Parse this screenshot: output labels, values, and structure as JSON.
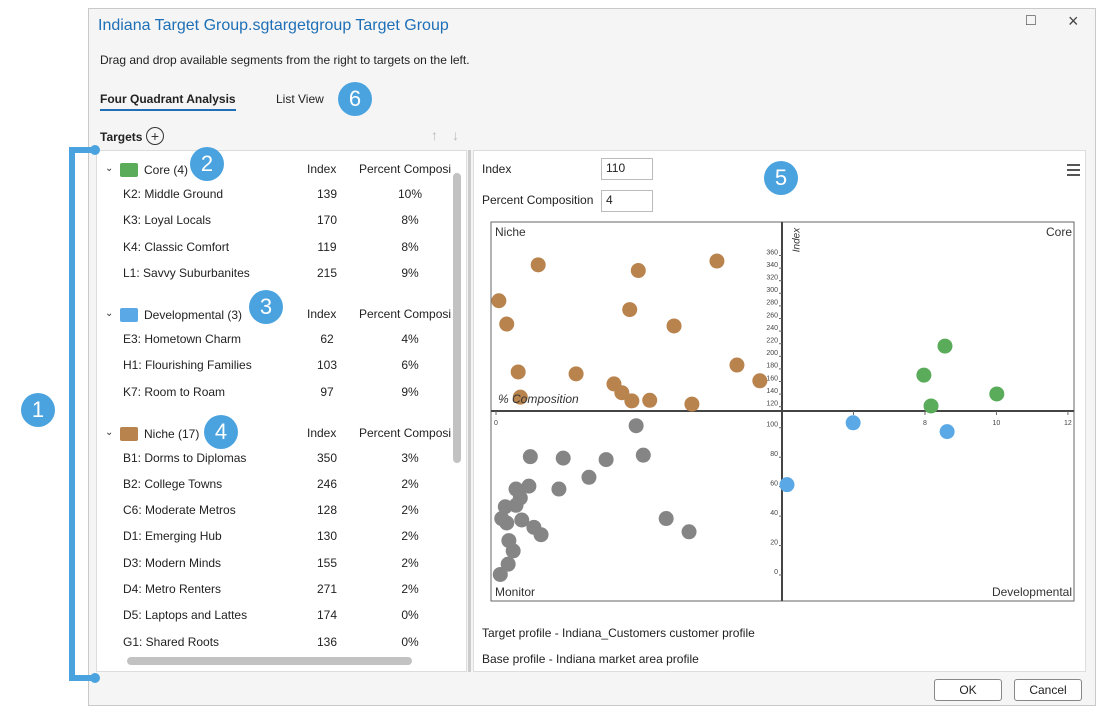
{
  "window": {
    "title": "Indiana Target Group.sgtargetgroup Target Group",
    "instruction": "Drag and drop available segments from the right to targets on the left.",
    "tabs": [
      "Four Quadrant Analysis",
      "List View"
    ],
    "buttons": [
      "OK",
      "Cancel"
    ]
  },
  "badges": [
    "1",
    "2",
    "3",
    "4",
    "5",
    "6"
  ],
  "targets": {
    "label": "Targets",
    "columns": [
      "Index",
      "Percent Composition"
    ],
    "groups": [
      {
        "name": "Core (4)",
        "color": "#5aab5a",
        "rows": [
          [
            "K2: Middle Ground",
            139,
            "10%"
          ],
          [
            "K3: Loyal Locals",
            170,
            "8%"
          ],
          [
            "K4: Classic Comfort",
            119,
            "8%"
          ],
          [
            "L1: Savvy Suburbanites",
            215,
            "9%"
          ]
        ]
      },
      {
        "name": "Developmental (3)",
        "color": "#5aa9e6",
        "rows": [
          [
            "E3: Hometown Charm",
            62,
            "4%"
          ],
          [
            "H1: Flourishing Families",
            103,
            "6%"
          ],
          [
            "K7: Room to Roam",
            97,
            "9%"
          ]
        ]
      },
      {
        "name": "Niche (17)",
        "color": "#b9834d",
        "rows": [
          [
            "B1: Dorms to Diplomas",
            350,
            "3%"
          ],
          [
            "B2: College Towns",
            246,
            "2%"
          ],
          [
            "C6: Moderate Metros",
            128,
            "2%"
          ],
          [
            "D1: Emerging Hub",
            130,
            "2%"
          ],
          [
            "D3: Modern Minds",
            155,
            "2%"
          ],
          [
            "D4: Metro Renters",
            271,
            "2%"
          ],
          [
            "D5: Laptops and Lattes",
            174,
            "0%"
          ],
          [
            "G1: Shared Roots",
            136,
            "0%"
          ]
        ]
      }
    ]
  },
  "filters": {
    "index_label": "Index",
    "index_value": 110,
    "percent_label": "Percent Composition",
    "percent_value": 4
  },
  "chart_data": {
    "type": "scatter",
    "quadrant_labels": [
      "Niche",
      "Core",
      "Monitor",
      "Developmental"
    ],
    "x_label": "% Composition",
    "y_label": "Index",
    "xlim": [
      -0.07,
      12.17
    ],
    "ylim": [
      -19,
      410
    ],
    "xticks": [
      0,
      6,
      8,
      10,
      12
    ],
    "yticks": [
      0,
      20,
      40,
      60,
      80,
      100,
      120,
      140,
      160,
      180,
      200,
      220,
      240,
      260,
      280,
      300,
      320,
      340,
      360
    ],
    "series": [
      {
        "color": "#b9834d",
        "x": [
          0.59,
          1.99,
          3.09,
          0.04,
          1.87,
          0.15,
          2.49,
          3.37,
          0.31,
          1.12,
          3.69,
          1.65,
          0.34,
          1.76,
          1.9,
          2.15,
          2.74
        ],
        "values": [
          342,
          333,
          348,
          285,
          271,
          248,
          245,
          183,
          172,
          169,
          158,
          153,
          132,
          139,
          126,
          127,
          121
        ]
      },
      {
        "color": "#5aab5a",
        "x": [
          8.56,
          7.97,
          10.01,
          8.17
        ],
        "values": [
          213,
          167,
          137,
          118
        ]
      },
      {
        "color": "#5aa9e6",
        "x": [
          5.99,
          8.62,
          4.14
        ],
        "values": [
          102,
          96,
          60
        ]
      },
      {
        "color": "#858585",
        "x": [
          1.96,
          0.48,
          0.94,
          1.54,
          2.06,
          0.28,
          0.46,
          0.88,
          1.3,
          0.34,
          0.13,
          0.28,
          0.36,
          0.53,
          0.63,
          0.08,
          0.15,
          2.38,
          2.7,
          0.18,
          0.24,
          0.17,
          0.06
        ],
        "values": [
          100,
          79,
          78,
          77,
          80,
          57,
          59,
          57,
          65,
          51,
          45,
          46,
          36,
          31,
          26,
          37,
          34,
          37,
          28,
          22,
          15,
          6,
          -1
        ]
      }
    ]
  },
  "footer": [
    "Target profile - Indiana_Customers customer profile",
    "Base profile - Indiana market area profile"
  ]
}
